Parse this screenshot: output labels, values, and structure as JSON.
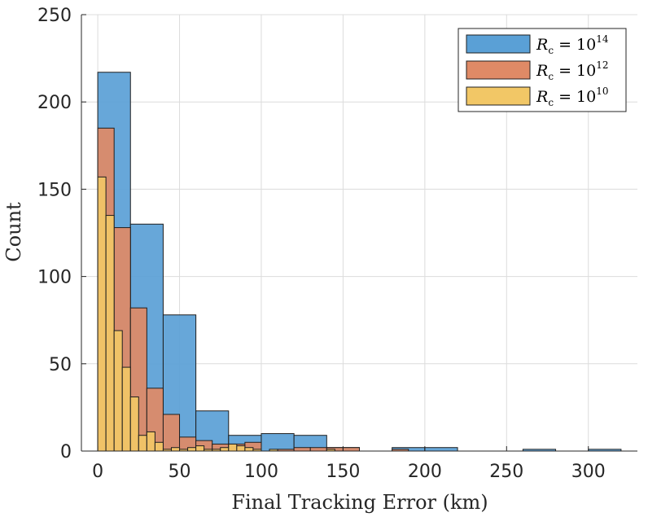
{
  "chart_data": {
    "type": "histogram",
    "title": "",
    "xlabel": "Final Tracking Error (km)",
    "ylabel": "Count",
    "xlim": [
      -10,
      330
    ],
    "ylim": [
      0,
      250
    ],
    "xticks": [
      0,
      50,
      100,
      150,
      200,
      250,
      300
    ],
    "yticks": [
      0,
      50,
      100,
      150,
      200,
      250
    ],
    "grid": true,
    "legend_position": "top-right",
    "series": [
      {
        "name": "R_c = 10^14",
        "legend_base": "R",
        "legend_sub": "c",
        "legend_eq": " = 10",
        "legend_exp": "14",
        "color": "#5aa0d6",
        "edge": "#1f1f1f",
        "bin_width": 20,
        "bins": [
          {
            "x0": 0,
            "count": 217
          },
          {
            "x0": 20,
            "count": 130
          },
          {
            "x0": 40,
            "count": 78
          },
          {
            "x0": 60,
            "count": 23
          },
          {
            "x0": 80,
            "count": 9
          },
          {
            "x0": 100,
            "count": 10
          },
          {
            "x0": 120,
            "count": 9
          },
          {
            "x0": 140,
            "count": 2
          },
          {
            "x0": 160,
            "count": 0
          },
          {
            "x0": 180,
            "count": 2
          },
          {
            "x0": 200,
            "count": 2
          },
          {
            "x0": 220,
            "count": 0
          },
          {
            "x0": 240,
            "count": 0
          },
          {
            "x0": 260,
            "count": 1
          },
          {
            "x0": 280,
            "count": 0
          },
          {
            "x0": 300,
            "count": 1
          }
        ]
      },
      {
        "name": "R_c = 10^12",
        "legend_base": "R",
        "legend_sub": "c",
        "legend_eq": " = 10",
        "legend_exp": "12",
        "color": "#df8a66",
        "edge": "#1f1f1f",
        "bin_width": 10,
        "bins": [
          {
            "x0": 0,
            "count": 185
          },
          {
            "x0": 10,
            "count": 128
          },
          {
            "x0": 20,
            "count": 82
          },
          {
            "x0": 30,
            "count": 36
          },
          {
            "x0": 40,
            "count": 21
          },
          {
            "x0": 50,
            "count": 8
          },
          {
            "x0": 60,
            "count": 6
          },
          {
            "x0": 70,
            "count": 4
          },
          {
            "x0": 80,
            "count": 4
          },
          {
            "x0": 90,
            "count": 5
          },
          {
            "x0": 100,
            "count": 0
          },
          {
            "x0": 110,
            "count": 1
          },
          {
            "x0": 120,
            "count": 2
          },
          {
            "x0": 130,
            "count": 2
          },
          {
            "x0": 140,
            "count": 2
          },
          {
            "x0": 150,
            "count": 2
          },
          {
            "x0": 160,
            "count": 0
          },
          {
            "x0": 170,
            "count": 0
          },
          {
            "x0": 180,
            "count": 1
          }
        ]
      },
      {
        "name": "R_c = 10^10",
        "legend_base": "R",
        "legend_sub": "c",
        "legend_eq": " = 10",
        "legend_exp": "10",
        "color": "#f2c766",
        "edge": "#1f1f1f",
        "bin_width": 5,
        "bins": [
          {
            "x0": 0,
            "count": 157
          },
          {
            "x0": 5,
            "count": 135
          },
          {
            "x0": 10,
            "count": 69
          },
          {
            "x0": 15,
            "count": 48
          },
          {
            "x0": 20,
            "count": 31
          },
          {
            "x0": 25,
            "count": 9
          },
          {
            "x0": 30,
            "count": 11
          },
          {
            "x0": 35,
            "count": 5
          },
          {
            "x0": 40,
            "count": 1
          },
          {
            "x0": 45,
            "count": 2
          },
          {
            "x0": 50,
            "count": 1
          },
          {
            "x0": 55,
            "count": 2
          },
          {
            "x0": 60,
            "count": 3
          },
          {
            "x0": 65,
            "count": 1
          },
          {
            "x0": 70,
            "count": 1
          },
          {
            "x0": 75,
            "count": 2
          },
          {
            "x0": 80,
            "count": 4
          },
          {
            "x0": 85,
            "count": 3
          },
          {
            "x0": 90,
            "count": 2
          },
          {
            "x0": 95,
            "count": 1
          },
          {
            "x0": 100,
            "count": 0
          },
          {
            "x0": 105,
            "count": 1
          },
          {
            "x0": 110,
            "count": 0
          },
          {
            "x0": 115,
            "count": 0
          },
          {
            "x0": 120,
            "count": 0
          },
          {
            "x0": 125,
            "count": 0
          },
          {
            "x0": 130,
            "count": 0
          },
          {
            "x0": 135,
            "count": 0
          },
          {
            "x0": 140,
            "count": 1
          }
        ]
      }
    ]
  }
}
